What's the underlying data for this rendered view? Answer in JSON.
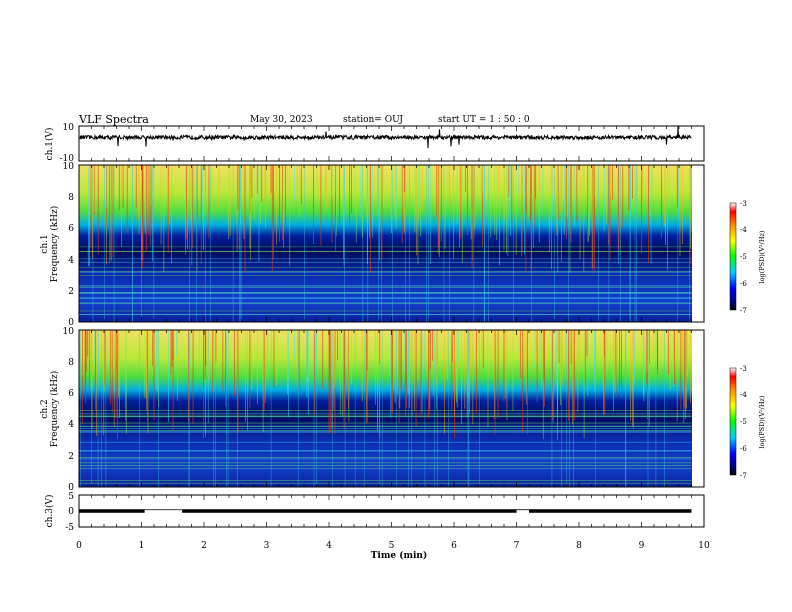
{
  "header": {
    "title": "VLF Spectra",
    "date": "May 30, 2023",
    "station": "station= OUJ",
    "start": "start  UT =   1 : 50 : 0"
  },
  "chart_data": [
    {
      "type": "line",
      "panel": "ch1-waveform",
      "ylabel": "ch.1(V)",
      "yticks": [
        "10",
        "-10"
      ],
      "ylim": [
        -10,
        10
      ],
      "description_level": 3.5
    },
    {
      "type": "heatmap",
      "panel": "ch1-spectrogram",
      "ylabel": "ch.1",
      "ylabel2": "Frequency (kHz)",
      "ylim": [
        0,
        10
      ],
      "yticks": [
        "0",
        "2",
        "4",
        "6",
        "8",
        "10"
      ],
      "colorbar": {
        "label": "log(PSD)(V²/Hz)",
        "ticks": [
          "-3",
          "-4",
          "-5",
          "-6",
          "-7"
        ],
        "range": [
          -7,
          -3
        ]
      }
    },
    {
      "type": "heatmap",
      "panel": "ch2-spectrogram",
      "ylabel": "ch.2",
      "ylabel2": "Frequency (kHz)",
      "ylim": [
        0,
        10
      ],
      "yticks": [
        "0",
        "2",
        "4",
        "6",
        "8",
        "10"
      ],
      "colorbar": {
        "label": "log(PSD)(V²/Hz)",
        "ticks": [
          "-3",
          "-4",
          "-5",
          "-6",
          "-7"
        ],
        "range": [
          -7,
          -3
        ]
      }
    },
    {
      "type": "line",
      "panel": "ch3-waveform",
      "ylabel": "ch.3(V)",
      "yticks": [
        "5",
        "0",
        "-5"
      ],
      "ylim": [
        -5,
        5
      ],
      "segments": [
        [
          0,
          1.05,
          0
        ],
        [
          1.05,
          1.65,
          0.4
        ],
        [
          1.65,
          7.0,
          0
        ],
        [
          7.0,
          7.2,
          0.4
        ],
        [
          7.2,
          9.8,
          0
        ]
      ]
    }
  ],
  "xaxis": {
    "label": "Time (min)",
    "ticks": [
      "0",
      "1",
      "2",
      "3",
      "4",
      "5",
      "6",
      "7",
      "8",
      "9",
      "10"
    ],
    "xlim": [
      0,
      10
    ],
    "data_end": 9.8
  }
}
